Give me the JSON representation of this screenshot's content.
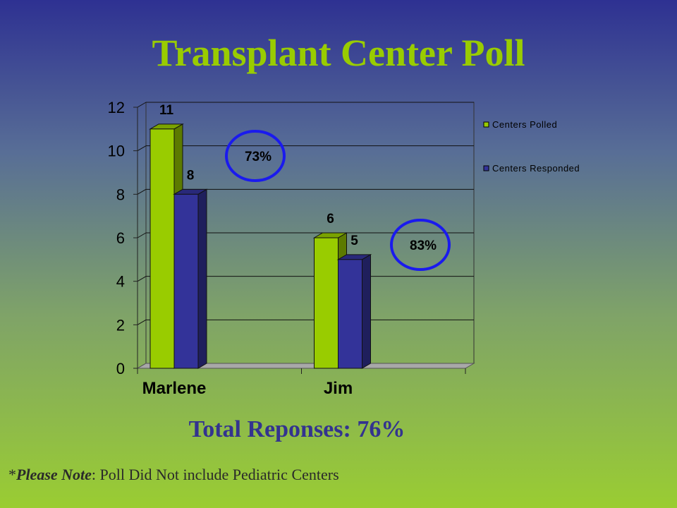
{
  "slide": {
    "title": "Transplant Center Poll",
    "total_label": "Total Reponses: 76%",
    "note_prefix": "*",
    "note_emphasis": "Please Note",
    "note_colon": ": ",
    "note_text": "Poll Did Not include Pediatric Centers"
  },
  "chart_data": {
    "type": "bar",
    "title": "",
    "xlabel": "",
    "ylabel": "",
    "ylim": [
      0,
      12
    ],
    "yticks": [
      0,
      2,
      4,
      6,
      8,
      10,
      12
    ],
    "grid": true,
    "legend_position": "right",
    "categories": [
      "Marlene",
      "Jim"
    ],
    "series": [
      {
        "name": "Centers Polled",
        "values": [
          11,
          6
        ],
        "color": "#99cc00"
      },
      {
        "name": "Centers Responded",
        "values": [
          8,
          5
        ],
        "color": "#333399"
      }
    ],
    "annotations": [
      {
        "text": "73%",
        "category": "Marlene"
      },
      {
        "text": "83%",
        "category": "Jim"
      }
    ],
    "annotation_circle_color": "#1a1aee"
  }
}
